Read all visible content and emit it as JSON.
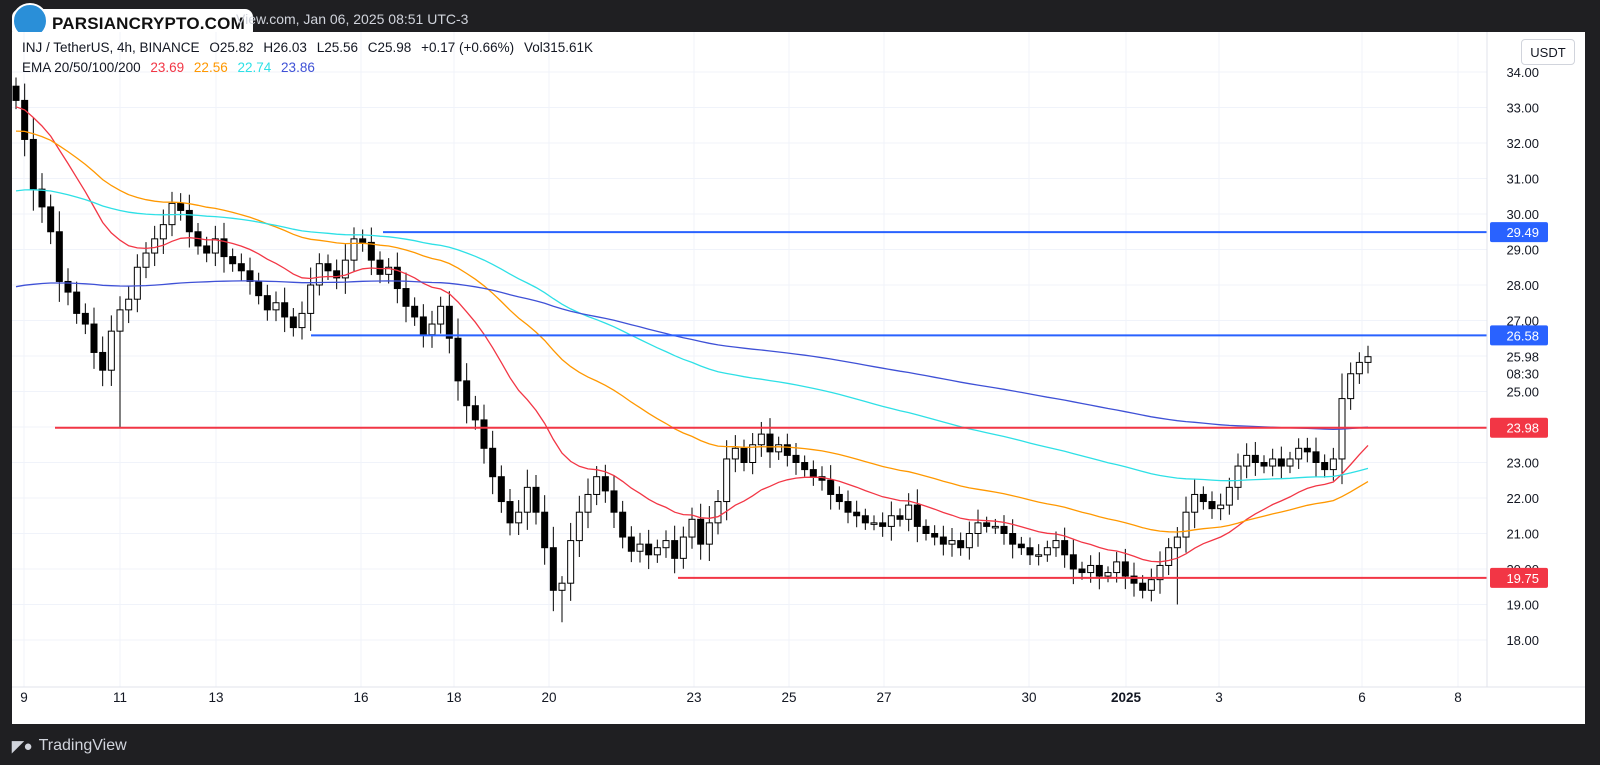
{
  "header": {
    "site": "PARSIANCRYPTO.COM",
    "info": "View.com, Jan 06, 2025 08:51 UTC-3"
  },
  "legend": {
    "symbol": "INJ / TetherUS, 4h, BINANCE",
    "open": "O25.82",
    "high": "H26.03",
    "low": "L25.56",
    "close": "C25.98",
    "change": "+0.17 (+0.66%)",
    "volume": "Vol315.61K",
    "ema_label": "EMA 20/50/100/200",
    "ema20": "23.69",
    "ema50": "22.56",
    "ema100": "22.74",
    "ema200": "23.86"
  },
  "currency_button": "USDT",
  "footer": {
    "brand": "TradingView"
  },
  "colors": {
    "ema20": "#f23645",
    "ema50": "#ff9800",
    "ema100": "#2ee0e6",
    "ema200": "#3f51d6",
    "up": "#ffffff",
    "down": "#000000",
    "level_blue": "#2962ff",
    "level_red": "#f23645"
  },
  "chart_data": {
    "type": "candlestick",
    "x_axis_labels": [
      "9",
      "11",
      "13",
      "16",
      "18",
      "20",
      "23",
      "25",
      "27",
      "30",
      "2025",
      "3",
      "6",
      "8"
    ],
    "y_axis_labels": [
      "18.00",
      "19.00",
      "20.00",
      "21.00",
      "22.00",
      "23.00",
      "24.00",
      "25.00",
      "26.00",
      "27.00",
      "28.00",
      "29.00",
      "30.00",
      "31.00",
      "32.00",
      "33.00",
      "34.00"
    ],
    "ylim": [
      17.5,
      34.2
    ],
    "price_tags": [
      {
        "label": "29.49",
        "value": 29.49,
        "color": "#2962ff"
      },
      {
        "label": "26.58",
        "value": 26.58,
        "color": "#2962ff"
      },
      {
        "label": "25.98",
        "value": 25.98,
        "color": "#ffffff",
        "sub": "08:30"
      },
      {
        "label": "23.98",
        "value": 23.98,
        "color": "#f23645"
      },
      {
        "label": "19.75",
        "value": 19.75,
        "color": "#f23645"
      }
    ],
    "levels": [
      {
        "value": 29.49,
        "from_date": "Dec 16",
        "color": "#2962ff"
      },
      {
        "value": 26.58,
        "from_date": "Dec 15",
        "color": "#2962ff"
      },
      {
        "value": 23.98,
        "from_date": "Dec 9",
        "color": "#f23645"
      },
      {
        "value": 19.75,
        "from_date": "Dec 22",
        "color": "#f23645"
      }
    ],
    "closes": [
      33.2,
      32.1,
      30.7,
      30.2,
      29.5,
      28.1,
      27.8,
      27.2,
      26.9,
      26.1,
      25.6,
      26.7,
      27.3,
      27.6,
      28.5,
      28.9,
      29.3,
      29.7,
      30.3,
      30.1,
      29.5,
      29.1,
      28.9,
      29.3,
      28.8,
      28.6,
      28.4,
      28.1,
      27.7,
      27.3,
      27.5,
      27.1,
      26.8,
      27.2,
      28.0,
      28.6,
      28.4,
      28.2,
      28.7,
      29.3,
      29.2,
      28.7,
      28.3,
      28.5,
      27.9,
      27.4,
      27.1,
      26.6,
      26.9,
      27.4,
      26.5,
      25.3,
      24.6,
      24.2,
      23.4,
      22.6,
      21.9,
      21.3,
      21.6,
      22.3,
      21.6,
      20.6,
      19.4,
      19.6,
      20.8,
      21.6,
      22.1,
      22.6,
      22.2,
      21.6,
      20.9,
      20.5,
      20.7,
      20.4,
      20.6,
      20.8,
      20.3,
      20.9,
      21.4,
      20.7,
      21.3,
      21.9,
      23.1,
      23.4,
      23.0,
      23.5,
      23.8,
      23.3,
      23.5,
      23.2,
      23.0,
      22.8,
      22.6,
      22.5,
      22.1,
      21.9,
      21.6,
      21.5,
      21.3,
      21.3,
      21.2,
      21.5,
      21.4,
      21.8,
      21.2,
      21.0,
      20.9,
      20.7,
      20.8,
      20.6,
      21.0,
      21.3,
      21.2,
      21.2,
      21.0,
      20.7,
      20.6,
      20.4,
      20.4,
      20.6,
      20.8,
      20.4,
      20.0,
      19.9,
      20.1,
      19.8,
      19.9,
      20.2,
      19.8,
      19.6,
      19.4,
      19.7,
      20.1,
      20.6,
      20.9,
      21.6,
      22.1,
      21.9,
      21.7,
      21.8,
      22.3,
      22.9,
      23.2,
      23.0,
      22.9,
      23.1,
      22.9,
      23.1,
      23.4,
      23.3,
      23.0,
      22.8,
      23.1,
      24.8,
      25.5,
      25.82,
      25.98
    ],
    "ema": {
      "ema20": {
        "label": "23.69",
        "color": "#f23645"
      },
      "ema50": {
        "label": "22.56",
        "color": "#ff9800"
      },
      "ema100": {
        "label": "22.74",
        "color": "#2ee0e6"
      },
      "ema200": {
        "label": "23.86",
        "color": "#3f51d6"
      }
    }
  }
}
